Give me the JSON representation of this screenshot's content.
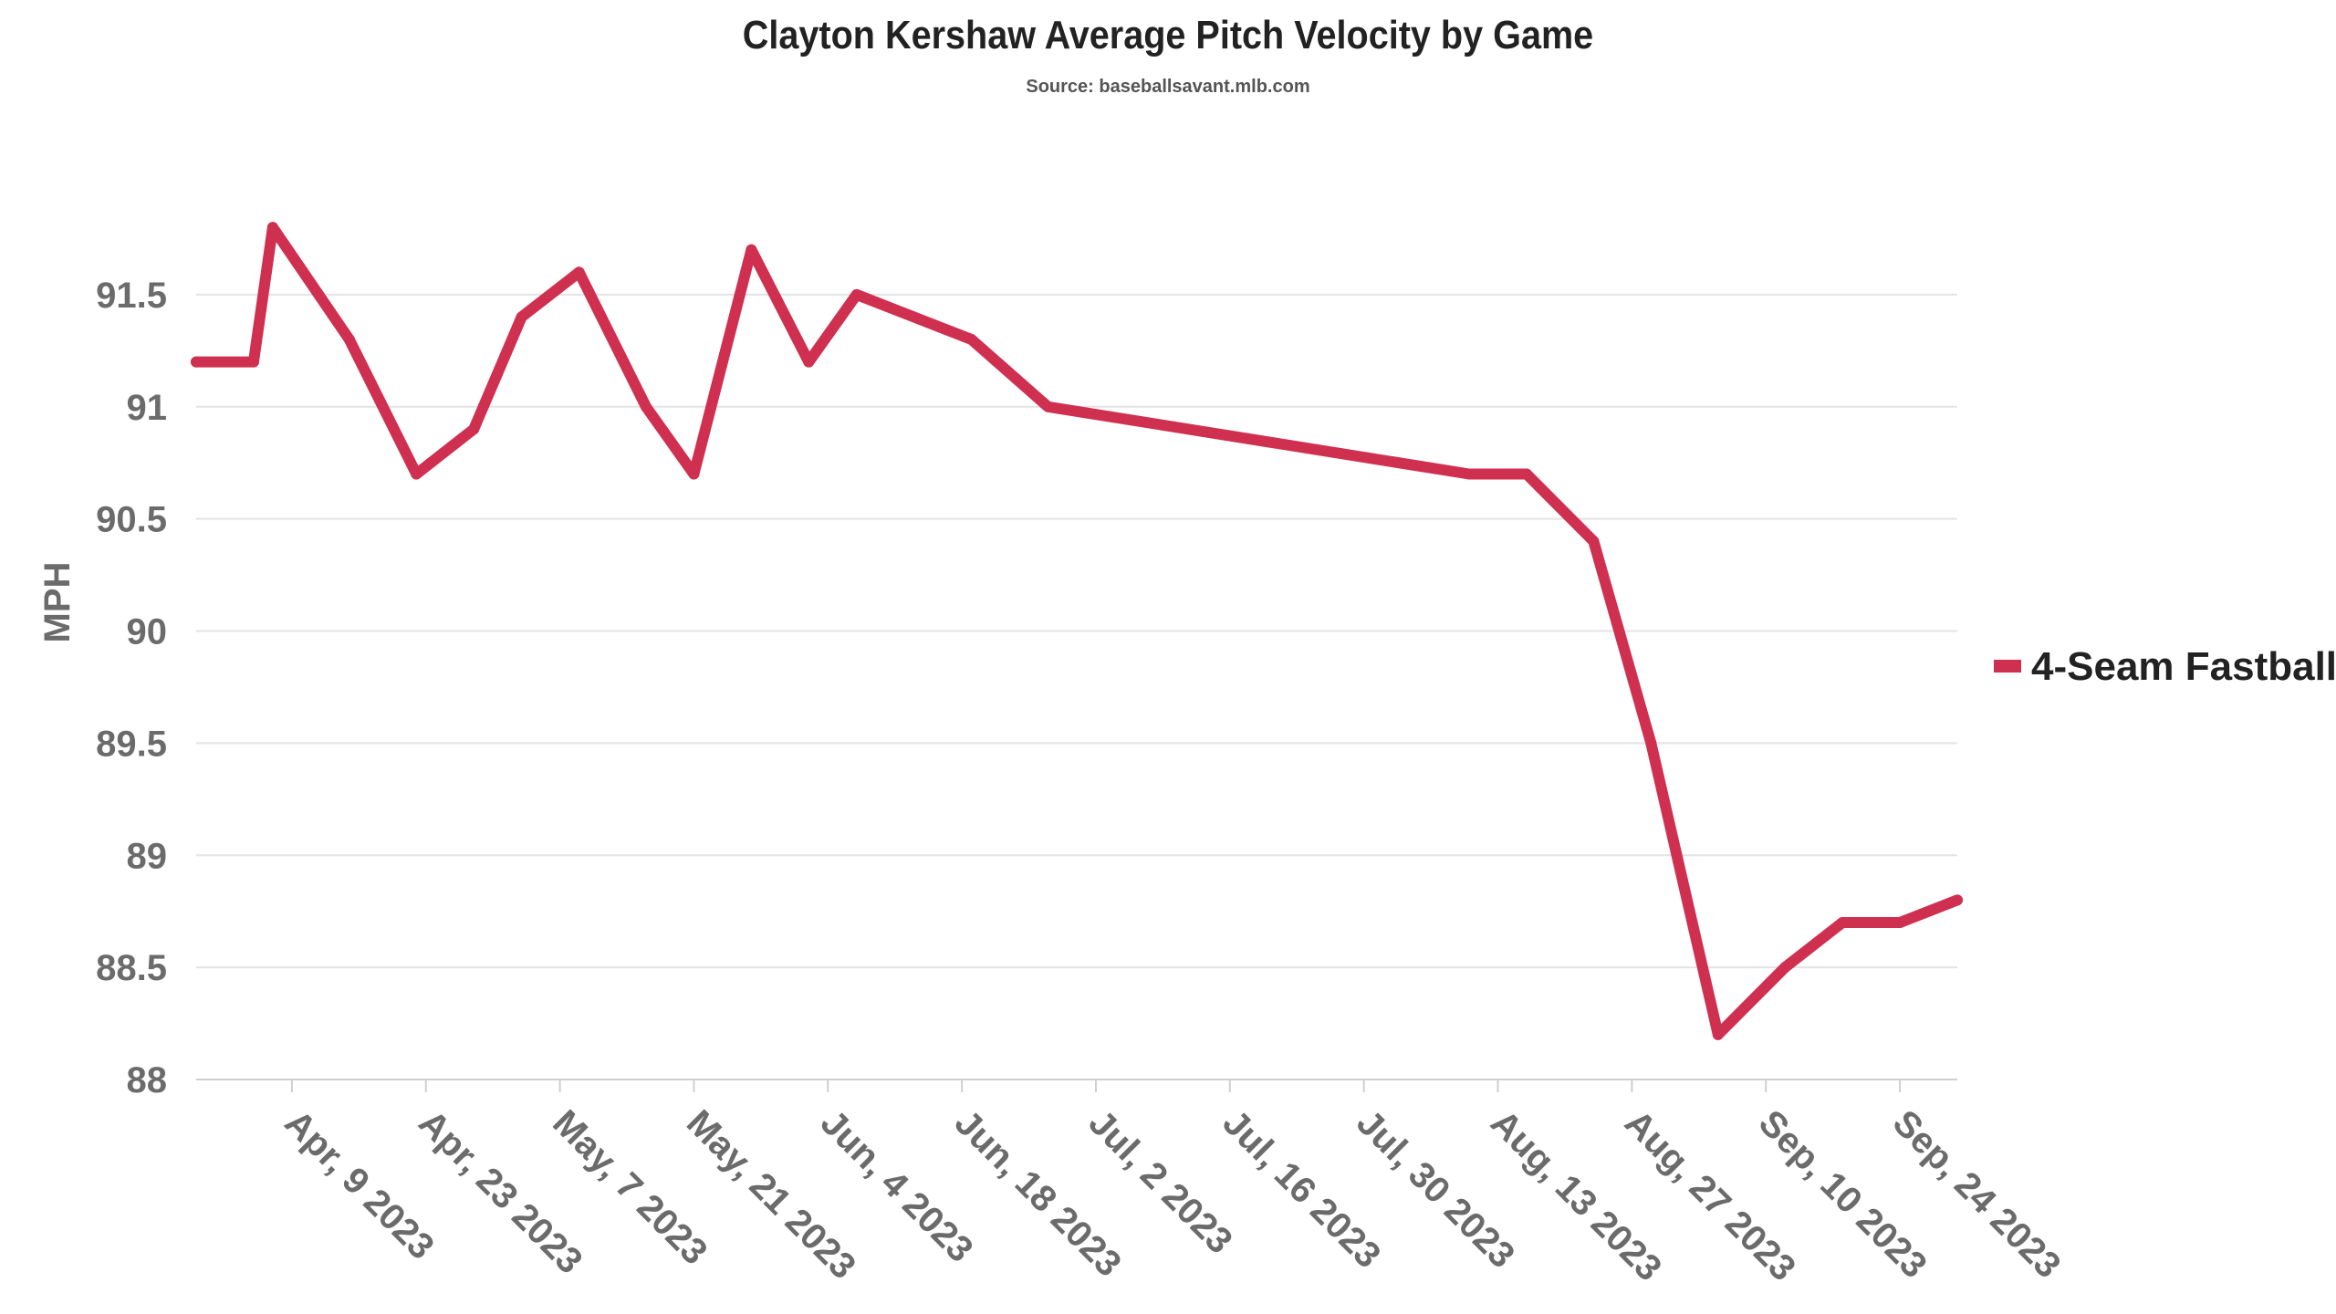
{
  "chart_data": {
    "type": "line",
    "title": "Clayton Kershaw Average Pitch Velocity by Game",
    "subtitle": "Source: baseballsavant.mlb.com",
    "xlabel": "",
    "ylabel": "MPH",
    "ylim": [
      88,
      92
    ],
    "yticks": [
      "88",
      "88.5",
      "89",
      "89.5",
      "90",
      "90.5",
      "91",
      "91.5"
    ],
    "xlim": [
      "2023-03-30",
      "2023-09-30"
    ],
    "xticks": [
      {
        "date": "2023-04-09",
        "label": "Apr, 9 2023"
      },
      {
        "date": "2023-04-23",
        "label": "Apr, 23 2023"
      },
      {
        "date": "2023-05-07",
        "label": "May, 7 2023"
      },
      {
        "date": "2023-05-21",
        "label": "May, 21 2023"
      },
      {
        "date": "2023-06-04",
        "label": "Jun, 4 2023"
      },
      {
        "date": "2023-06-18",
        "label": "Jun, 18 2023"
      },
      {
        "date": "2023-07-02",
        "label": "Jul, 2 2023"
      },
      {
        "date": "2023-07-16",
        "label": "Jul, 16 2023"
      },
      {
        "date": "2023-07-30",
        "label": "Jul, 30 2023"
      },
      {
        "date": "2023-08-13",
        "label": "Aug, 13 2023"
      },
      {
        "date": "2023-08-27",
        "label": "Aug, 27 2023"
      },
      {
        "date": "2023-09-10",
        "label": "Sep, 10 2023"
      },
      {
        "date": "2023-09-24",
        "label": "Sep, 24 2023"
      }
    ],
    "grid": true,
    "legend_position": "right",
    "series": [
      {
        "name": "4-Seam Fastball",
        "color": "#d03050",
        "points": [
          {
            "x": "2023-03-30",
            "y": 91.2
          },
          {
            "x": "2023-04-05",
            "y": 91.2
          },
          {
            "x": "2023-04-07",
            "y": 91.8
          },
          {
            "x": "2023-04-15",
            "y": 91.3
          },
          {
            "x": "2023-04-22",
            "y": 90.7
          },
          {
            "x": "2023-04-28",
            "y": 90.9
          },
          {
            "x": "2023-05-03",
            "y": 91.4
          },
          {
            "x": "2023-05-09",
            "y": 91.6
          },
          {
            "x": "2023-05-16",
            "y": 91.0
          },
          {
            "x": "2023-05-21",
            "y": 90.7
          },
          {
            "x": "2023-05-27",
            "y": 91.7
          },
          {
            "x": "2023-06-02",
            "y": 91.2
          },
          {
            "x": "2023-06-07",
            "y": 91.5
          },
          {
            "x": "2023-06-19",
            "y": 91.3
          },
          {
            "x": "2023-06-27",
            "y": 91.0
          },
          {
            "x": "2023-08-10",
            "y": 90.7
          },
          {
            "x": "2023-08-16",
            "y": 90.7
          },
          {
            "x": "2023-08-23",
            "y": 90.4
          },
          {
            "x": "2023-08-29",
            "y": 89.5
          },
          {
            "x": "2023-09-05",
            "y": 88.2
          },
          {
            "x": "2023-09-12",
            "y": 88.5
          },
          {
            "x": "2023-09-18",
            "y": 88.7
          },
          {
            "x": "2023-09-24",
            "y": 88.7
          },
          {
            "x": "2023-09-30",
            "y": 88.8
          }
        ]
      }
    ]
  }
}
